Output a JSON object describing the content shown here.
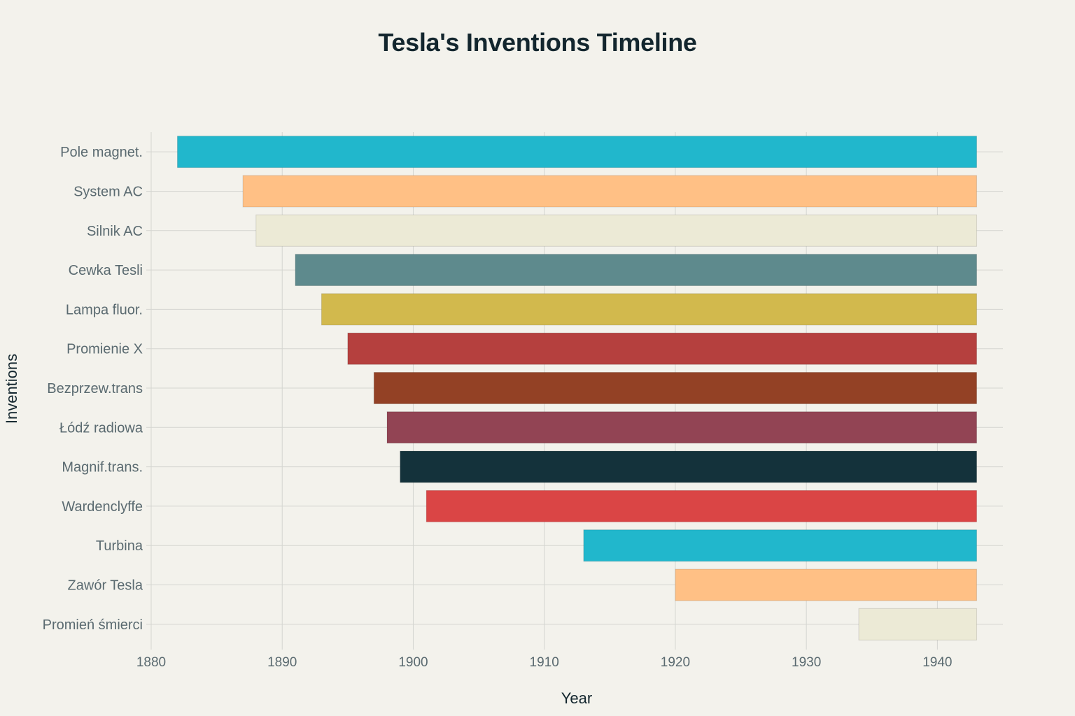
{
  "chart_data": {
    "type": "bar",
    "orientation": "horizontal",
    "title": "Tesla's Inventions Timeline",
    "xlabel": "Year",
    "ylabel": "Inventions",
    "xlim": [
      1880,
      1945
    ],
    "x_ticks": [
      1880,
      1890,
      1900,
      1910,
      1920,
      1930,
      1940
    ],
    "grid": true,
    "bars": [
      {
        "label": "Pole magnet.",
        "start": 1882,
        "end": 1943,
        "color": "#21b7cc"
      },
      {
        "label": "System AC",
        "start": 1887,
        "end": 1943,
        "color": "#ffc085"
      },
      {
        "label": "Silnik AC",
        "start": 1888,
        "end": 1943,
        "color": "#ecead6"
      },
      {
        "label": "Cewka Tesli",
        "start": 1891,
        "end": 1943,
        "color": "#5e8a8d"
      },
      {
        "label": "Lampa fluor.",
        "start": 1893,
        "end": 1943,
        "color": "#d2b94d"
      },
      {
        "label": "Promienie X",
        "start": 1895,
        "end": 1943,
        "color": "#b5403e"
      },
      {
        "label": "Bezprzew.trans",
        "start": 1897,
        "end": 1943,
        "color": "#934125"
      },
      {
        "label": "Łódź radiowa",
        "start": 1898,
        "end": 1943,
        "color": "#924454"
      },
      {
        "label": "Magnif.trans.",
        "start": 1899,
        "end": 1943,
        "color": "#14323b"
      },
      {
        "label": "Wardenclyffe",
        "start": 1901,
        "end": 1943,
        "color": "#da4545"
      },
      {
        "label": "Turbina",
        "start": 1913,
        "end": 1943,
        "color": "#21b7cc"
      },
      {
        "label": "Zawór Tesla",
        "start": 1920,
        "end": 1943,
        "color": "#ffc085"
      },
      {
        "label": "Promień śmierci",
        "start": 1934,
        "end": 1943,
        "color": "#ecead6"
      }
    ]
  }
}
